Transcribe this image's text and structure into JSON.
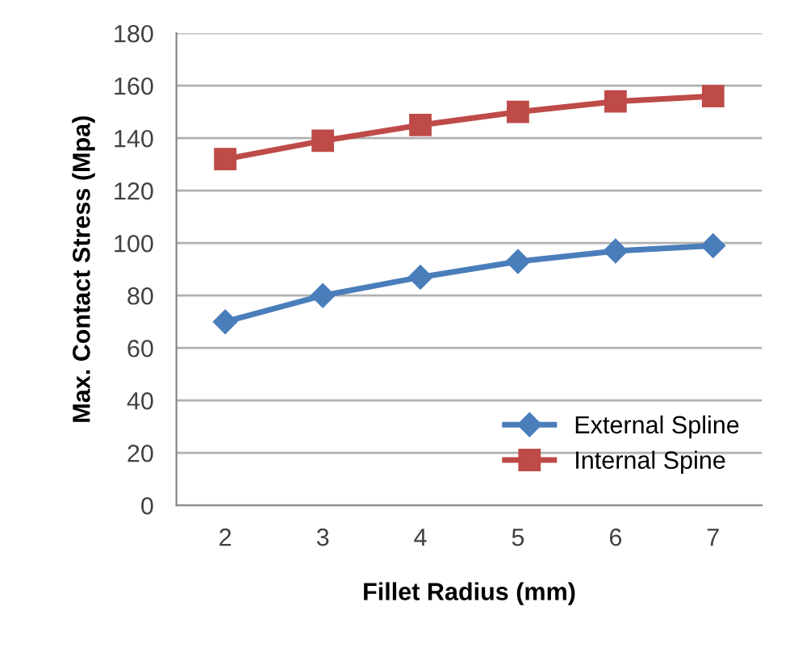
{
  "chart_data": {
    "type": "line",
    "xlabel": "Fillet Radius (mm)",
    "ylabel": "Max. Contact Stress (Mpa)",
    "categories": [
      "2",
      "3",
      "4",
      "5",
      "6",
      "7"
    ],
    "series": [
      {
        "name": "External Spline",
        "color": "#4a7ebb",
        "marker": "diamond",
        "values": [
          70,
          80,
          87,
          93,
          97,
          99
        ]
      },
      {
        "name": "Internal Spine",
        "color": "#be4b48",
        "marker": "square",
        "values": [
          132,
          139,
          145,
          150,
          154,
          156
        ]
      }
    ],
    "ylim": [
      0,
      180
    ],
    "yticks": [
      0,
      20,
      40,
      60,
      80,
      100,
      120,
      140,
      160,
      180
    ],
    "grid": "y",
    "legend": "bottom right"
  }
}
